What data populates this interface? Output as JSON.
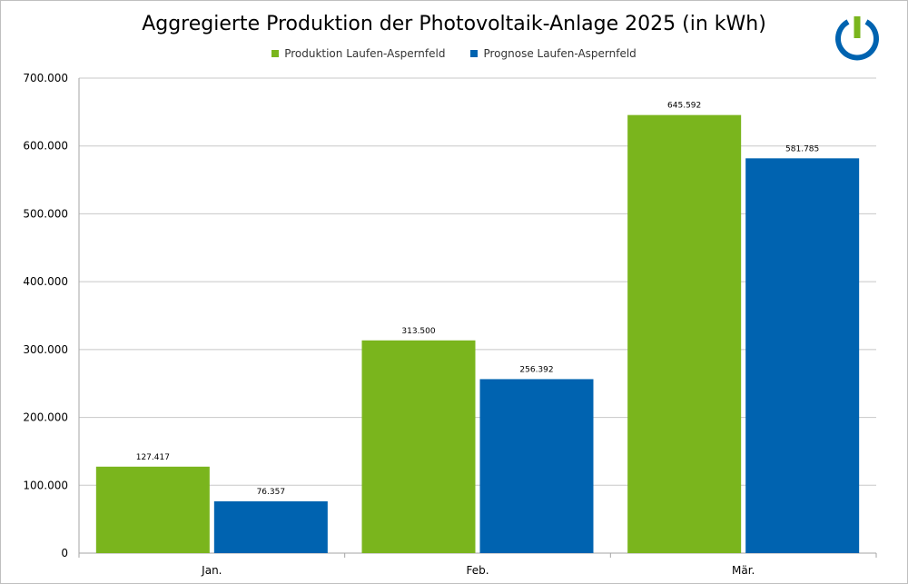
{
  "chart_data": {
    "type": "bar",
    "title": "Aggregierte Produktion der Photovoltaik-Anlage 2025 (in kWh)",
    "categories": [
      "Jan.",
      "Feb.",
      "Mär."
    ],
    "series": [
      {
        "name": "Produktion Laufen-Aspernfeld",
        "color": "#7ab51d",
        "values": [
          127417,
          313500,
          645592
        ],
        "labels": [
          "127.417",
          "313.500",
          "645.592"
        ]
      },
      {
        "name": "Prognose Laufen-Aspernfeld",
        "color": "#0063b0",
        "values": [
          76357,
          256392,
          581785
        ],
        "labels": [
          "76.357",
          "256.392",
          "581.785"
        ]
      }
    ],
    "ylim": [
      0,
      700000
    ],
    "yticks": [
      0,
      100000,
      200000,
      300000,
      400000,
      500000,
      600000,
      700000
    ],
    "ytick_labels": [
      "0",
      "100.000",
      "200.000",
      "300.000",
      "400.000",
      "500.000",
      "600.000",
      "700.000"
    ],
    "grid": true,
    "legend_position": "top-center"
  },
  "logo": {
    "name": "power-logo-icon",
    "colors": {
      "ring": "#0063b0",
      "bar": "#7ab51d"
    }
  }
}
